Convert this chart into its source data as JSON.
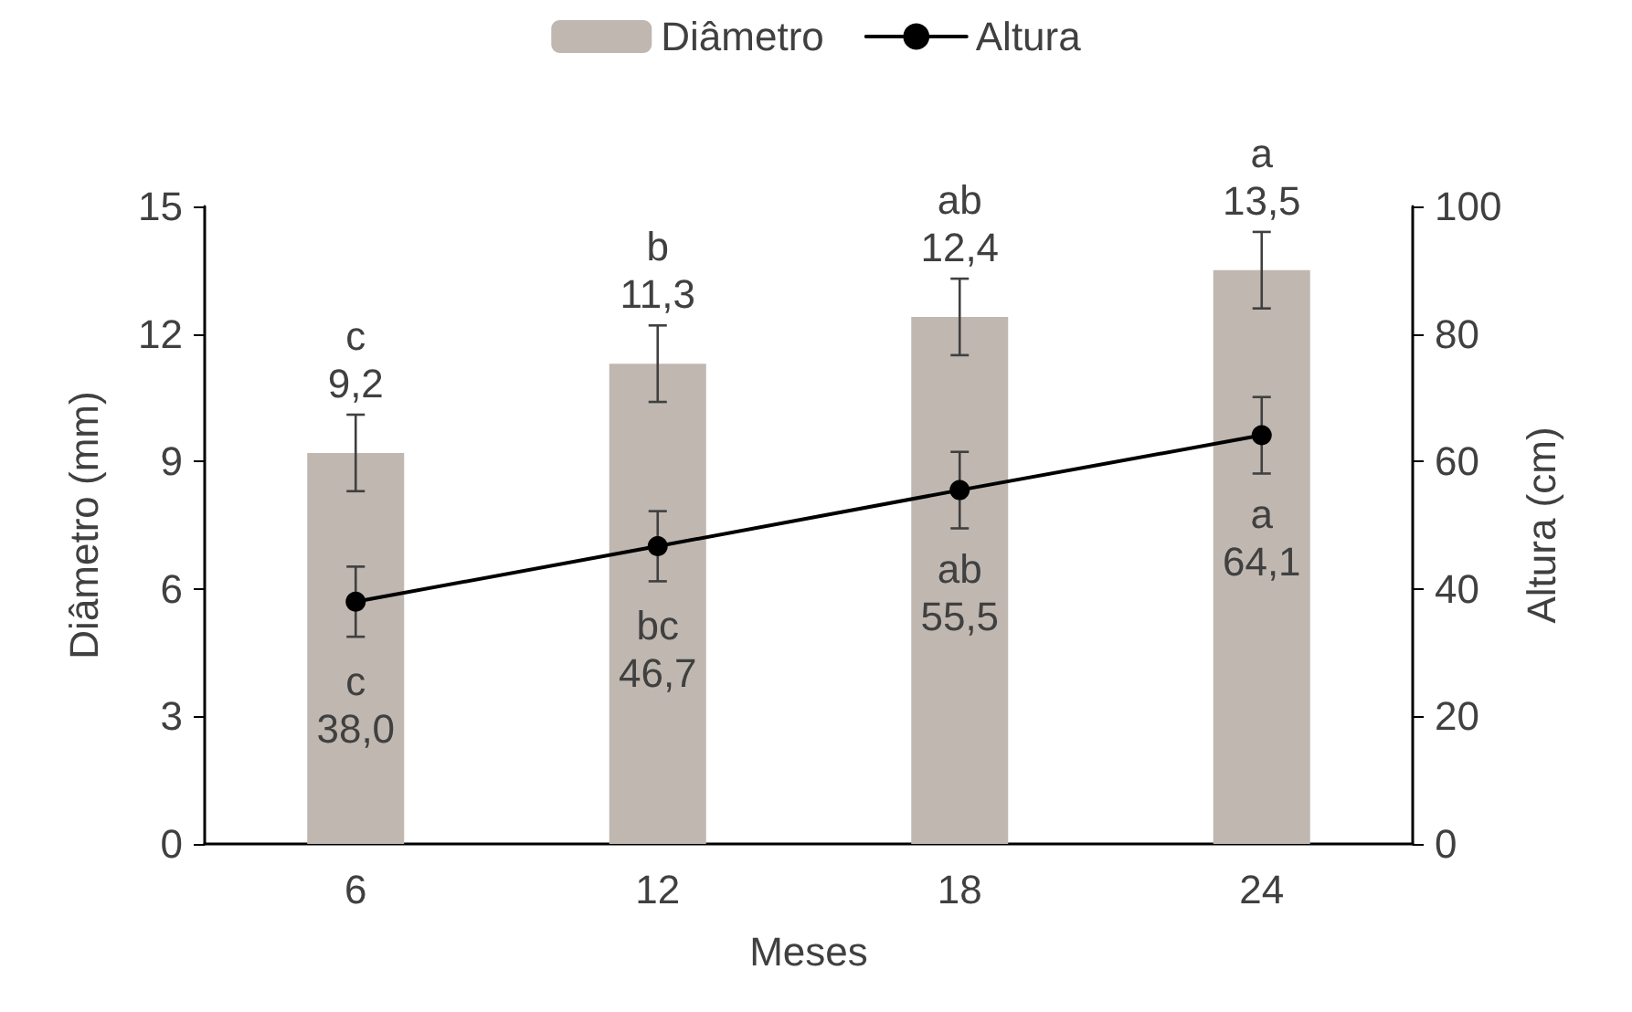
{
  "chart_data": {
    "type": "bar",
    "xlabel": "Meses",
    "ylabel": "Diâmetro (mm)",
    "y2label": "Altura (cm)",
    "categories": [
      "6",
      "12",
      "18",
      "24"
    ],
    "series": [
      {
        "name": "Diâmetro",
        "color": "#bfb7b0",
        "values": [
          9.2,
          11.3,
          12.4,
          13.5
        ],
        "errors": [
          0.9,
          0.9,
          0.9,
          0.9
        ],
        "value_labels": [
          "c\n9,2",
          "b\n11,3",
          "ab\n12,4",
          "a\n13,5"
        ]
      },
      {
        "name": "Altura",
        "type": "line",
        "axis": "y2",
        "color": "#000000",
        "marker": "circle",
        "line_style": "solid",
        "values": [
          38.0,
          46.7,
          55.5,
          64.1
        ],
        "errors": [
          5.5,
          5.5,
          6,
          6
        ],
        "value_labels": [
          "c\n38,0",
          "bc\n46,7",
          "ab\n55,5",
          "a\n64,1"
        ]
      }
    ],
    "ylim": [
      0,
      15
    ],
    "yticks": [
      0,
      3,
      6,
      9,
      12,
      15
    ],
    "y2lim": [
      0,
      100
    ],
    "y2ticks": [
      0,
      20,
      40,
      60,
      80,
      100
    ],
    "grid": false,
    "legend": "top"
  }
}
